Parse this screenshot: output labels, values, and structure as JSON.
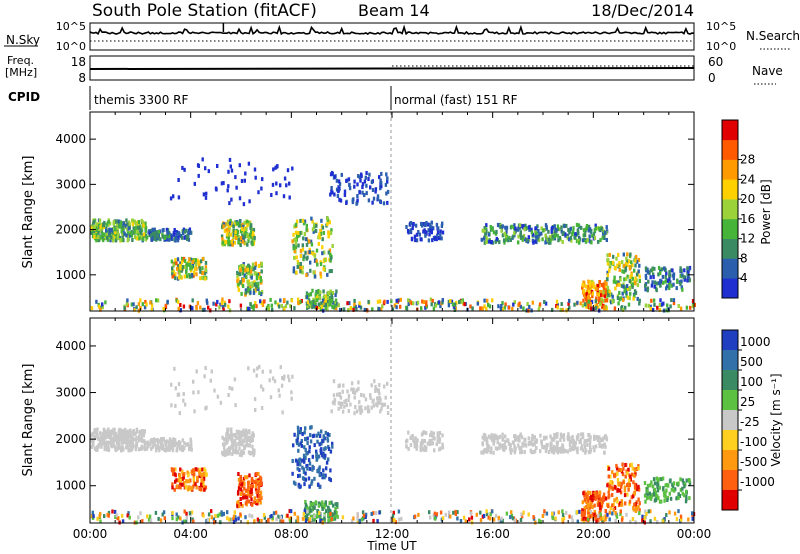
{
  "header": {
    "station": "South Pole Station (fitACF)",
    "beam": "Beam 14",
    "date": "18/Dec/2014"
  },
  "top_panels": {
    "nsky_label": "N.Sky",
    "nsky_ticks": [
      "10^5",
      "10^0"
    ],
    "nsearch_label": "N.Search",
    "nsearch_ticks": [
      "10^5",
      "10^0"
    ],
    "freq_label_line1": "Freq.",
    "freq_label_line2": "[MHz]",
    "freq_ticks": [
      "18",
      "8"
    ],
    "nave_label": "Nave",
    "nave_ticks": [
      "60",
      "0"
    ],
    "cpid_label": "CPID",
    "cpid_segments": [
      {
        "label": "themis 3300 RF",
        "start_hour": 0
      },
      {
        "label": "normal (fast) 151 RF",
        "start_hour": 12
      }
    ]
  },
  "chart_data": [
    {
      "type": "heatmap",
      "quantity": "power",
      "ylabel": "Slant Range [km]",
      "y_ticks": [
        1000,
        2000,
        3000,
        4000
      ],
      "ylim": [
        200,
        4600
      ],
      "xlim": [
        0,
        24
      ],
      "colorbar_label": "Power [dB]",
      "colorbar_ticks": [
        "4",
        "8",
        "12",
        "16",
        "20",
        "24",
        "28"
      ],
      "colorbar_colors": [
        "#1f2fd0",
        "#2b5fae",
        "#3a8a64",
        "#46b339",
        "#9bd23a",
        "#ffd000",
        "#ff9a00",
        "#ff5a00",
        "#e00000"
      ]
    },
    {
      "type": "heatmap",
      "quantity": "velocity",
      "ylabel": "Slant Range [km]",
      "y_ticks": [
        1000,
        2000,
        3000,
        4000
      ],
      "ylim": [
        200,
        4600
      ],
      "xlim": [
        0,
        24
      ],
      "xlabel": "Time UT",
      "x_tick_labels": [
        "00:00",
        "04:00",
        "08:00",
        "12:00",
        "16:00",
        "20:00",
        "00:00"
      ],
      "colorbar_label": "Velocity [m s⁻¹]",
      "colorbar_ticks": [
        "1000",
        "500",
        "100",
        "25",
        "-25",
        "-100",
        "-500",
        "-1000"
      ],
      "colorbar_colors": [
        "#1f3fc0",
        "#3170a8",
        "#3a8a64",
        "#5cc040",
        "#c8c8c8",
        "#ffd020",
        "#ff9a10",
        "#ff6010",
        "#e00000"
      ]
    }
  ]
}
